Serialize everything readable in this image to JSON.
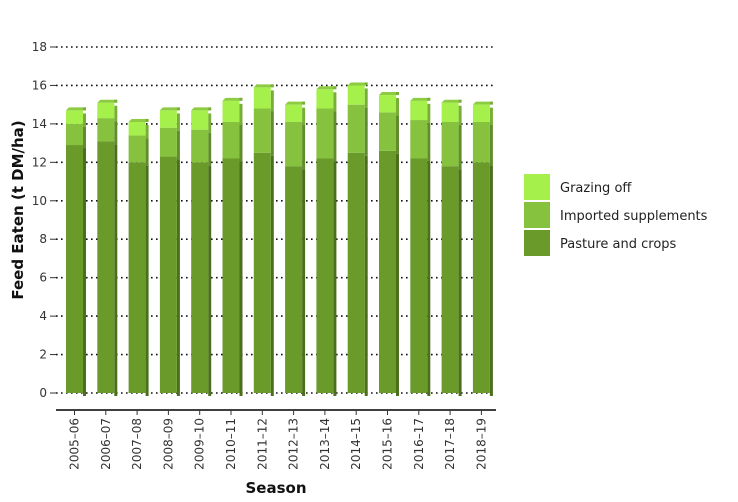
{
  "chart_data": {
    "type": "bar",
    "stacked": true,
    "categories": [
      "2005–06",
      "2006–07",
      "2007–08",
      "2008–09",
      "2009–10",
      "2010–11",
      "2011–12",
      "2012–13",
      "2013–14",
      "2014–15",
      "2015–16",
      "2016–17",
      "2017–18",
      "2018–19"
    ],
    "series": [
      {
        "name": "Pasture and crops",
        "color": "#6a9a2a",
        "values": [
          12.9,
          13.1,
          12.0,
          12.3,
          12.0,
          12.2,
          12.5,
          11.8,
          12.2,
          12.5,
          12.6,
          12.2,
          11.8,
          12.0
        ]
      },
      {
        "name": "Imported supplements",
        "color": "#86c23e",
        "values": [
          1.1,
          1.2,
          1.4,
          1.5,
          1.7,
          1.9,
          2.3,
          2.3,
          2.6,
          2.5,
          2.0,
          2.0,
          2.3,
          2.1
        ]
      },
      {
        "name": "Grazing off",
        "color": "#a6f04c",
        "values": [
          0.7,
          0.8,
          0.7,
          0.9,
          1.0,
          1.1,
          1.1,
          0.9,
          1.0,
          1.0,
          0.9,
          1.0,
          1.0,
          0.9
        ]
      }
    ],
    "xlabel": "Season",
    "ylabel": "Feed Eaten (t DM/ha)",
    "ylim": [
      0,
      18
    ],
    "yticks": [
      0,
      2,
      4,
      6,
      8,
      10,
      12,
      14,
      16,
      18
    ],
    "grid": "horizontal-dotted",
    "legend_position": "right",
    "legend_order": [
      "Grazing off",
      "Imported supplements",
      "Pasture and crops"
    ]
  }
}
